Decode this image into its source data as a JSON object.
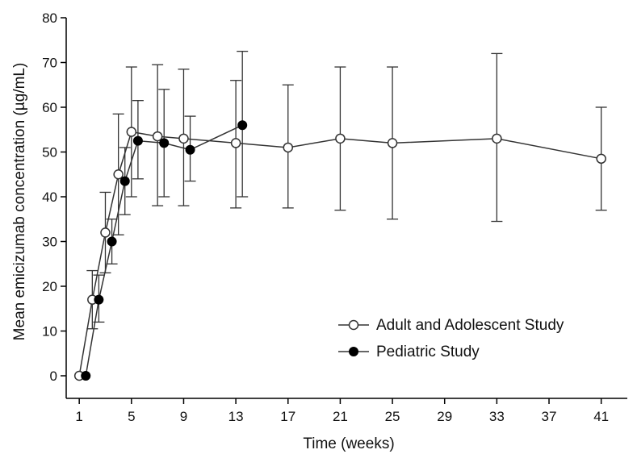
{
  "chart_data": {
    "type": "line",
    "xlabel": "Time (weeks)",
    "ylabel": "Mean emicizumab concentration (µg/mL)",
    "xlim": [
      0,
      43
    ],
    "ylim": [
      0,
      80
    ],
    "xticks": [
      1,
      5,
      9,
      13,
      17,
      21,
      25,
      29,
      33,
      37,
      41
    ],
    "yticks": [
      0,
      10,
      20,
      30,
      40,
      50,
      60,
      70,
      80
    ],
    "grid": false,
    "legend_position": "bottom-right",
    "series": [
      {
        "name": "Adult and Adolescent Study",
        "marker": "open-circle",
        "x": [
          1,
          2,
          3,
          4,
          5,
          7,
          9,
          13,
          17,
          21,
          25,
          33,
          41
        ],
        "y": [
          0,
          17,
          32,
          45,
          54.5,
          53.5,
          53,
          52,
          51,
          53,
          52,
          53,
          48.5
        ],
        "upper": [
          null,
          23.5,
          41,
          58.5,
          69,
          69.5,
          68.5,
          66,
          65,
          69,
          69,
          72,
          60
        ],
        "lower": [
          null,
          10.5,
          23,
          31.5,
          40,
          38,
          38,
          37.5,
          37.5,
          37,
          35,
          34.5,
          37
        ]
      },
      {
        "name": "Pediatric Study",
        "marker": "filled-circle",
        "x": [
          1.5,
          2.5,
          3.5,
          4.5,
          5.5,
          7.5,
          9.5,
          13.5
        ],
        "y": [
          0,
          17,
          30,
          43.5,
          52.5,
          52,
          50.5,
          56
        ],
        "upper": [
          null,
          22.5,
          35,
          51,
          61.5,
          64,
          58,
          72.5
        ],
        "lower": [
          null,
          12,
          25,
          36,
          44,
          40,
          43.5,
          40
        ]
      }
    ]
  }
}
